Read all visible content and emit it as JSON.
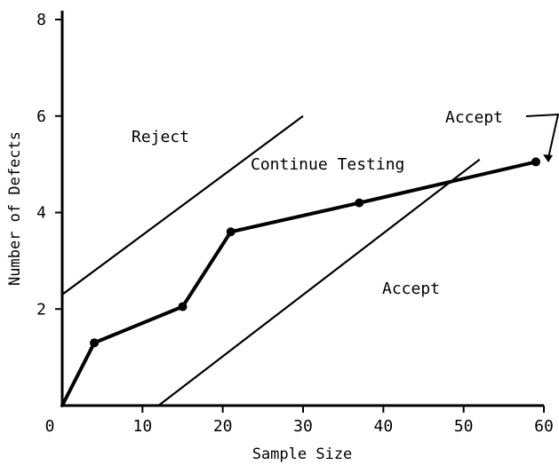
{
  "chart_data": {
    "type": "line",
    "xlabel": "Sample Size",
    "ylabel": "Number of Defects",
    "xlim": [
      0,
      60
    ],
    "ylim": [
      0,
      8
    ],
    "xticks": [
      "0",
      "10",
      "20",
      "30",
      "40",
      "50",
      "60"
    ],
    "yticks": [
      "2",
      "4",
      "6",
      "8"
    ],
    "grid": false,
    "reject_line": {
      "x": [
        0,
        30
      ],
      "y": [
        2.3,
        6.0
      ]
    },
    "accept_line": {
      "x": [
        12,
        52
      ],
      "y": [
        0,
        5.1
      ]
    },
    "test_path": {
      "x": [
        0,
        4,
        15,
        21,
        37,
        59
      ],
      "y": [
        0,
        1.3,
        2.05,
        3.6,
        4.2,
        5.05
      ]
    },
    "point_marks": {
      "x": [
        4,
        15,
        21,
        37,
        59
      ],
      "y": [
        1.3,
        2.05,
        3.6,
        4.2,
        5.05
      ]
    },
    "annotations": {
      "reject": "Reject",
      "continue_testing": "Continue Testing",
      "accept_region": "Accept",
      "accept_point": "Accept"
    }
  }
}
